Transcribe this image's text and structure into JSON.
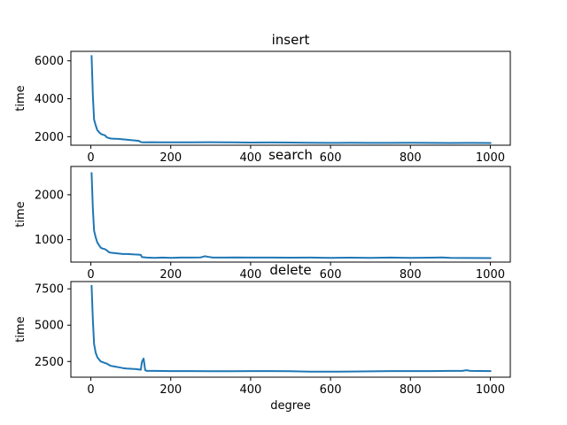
{
  "chart_data": [
    {
      "type": "line",
      "title": "insert",
      "xlabel": "",
      "ylabel": "time",
      "xlim": [
        -50,
        1050
      ],
      "ylim": [
        1550,
        6500
      ],
      "xticks": [
        0,
        200,
        400,
        600,
        800,
        1000
      ],
      "yticks": [
        2000,
        4000,
        6000
      ],
      "color": "#1f77b4",
      "points": [
        [
          2,
          6250
        ],
        [
          5,
          4200
        ],
        [
          8,
          2900
        ],
        [
          12,
          2600
        ],
        [
          16,
          2350
        ],
        [
          20,
          2250
        ],
        [
          25,
          2150
        ],
        [
          30,
          2100
        ],
        [
          35,
          2080
        ],
        [
          40,
          1960
        ],
        [
          50,
          1900
        ],
        [
          60,
          1890
        ],
        [
          70,
          1880
        ],
        [
          80,
          1860
        ],
        [
          90,
          1840
        ],
        [
          100,
          1820
        ],
        [
          110,
          1800
        ],
        [
          120,
          1780
        ],
        [
          125,
          1720
        ],
        [
          130,
          1700
        ],
        [
          150,
          1710
        ],
        [
          175,
          1700
        ],
        [
          200,
          1705
        ],
        [
          250,
          1700
        ],
        [
          300,
          1710
        ],
        [
          350,
          1700
        ],
        [
          400,
          1690
        ],
        [
          450,
          1695
        ],
        [
          500,
          1690
        ],
        [
          550,
          1680
        ],
        [
          600,
          1670
        ],
        [
          650,
          1675
        ],
        [
          700,
          1670
        ],
        [
          750,
          1670
        ],
        [
          800,
          1675
        ],
        [
          850,
          1670
        ],
        [
          900,
          1665
        ],
        [
          950,
          1670
        ],
        [
          1000,
          1665
        ]
      ]
    },
    {
      "type": "line",
      "title": "search",
      "xlabel": "",
      "ylabel": "time",
      "xlim": [
        -50,
        1050
      ],
      "ylim": [
        500,
        2630
      ],
      "xticks": [
        0,
        200,
        400,
        600,
        800,
        1000
      ],
      "yticks": [
        1000,
        2000
      ],
      "color": "#1f77b4",
      "points": [
        [
          2,
          2480
        ],
        [
          5,
          1700
        ],
        [
          8,
          1200
        ],
        [
          12,
          1050
        ],
        [
          16,
          940
        ],
        [
          20,
          880
        ],
        [
          25,
          820
        ],
        [
          30,
          800
        ],
        [
          35,
          790
        ],
        [
          40,
          760
        ],
        [
          45,
          720
        ],
        [
          50,
          710
        ],
        [
          60,
          700
        ],
        [
          70,
          690
        ],
        [
          80,
          680
        ],
        [
          90,
          680
        ],
        [
          100,
          675
        ],
        [
          110,
          670
        ],
        [
          120,
          665
        ],
        [
          125,
          660
        ],
        [
          128,
          610
        ],
        [
          140,
          600
        ],
        [
          160,
          595
        ],
        [
          180,
          600
        ],
        [
          200,
          595
        ],
        [
          225,
          600
        ],
        [
          250,
          600
        ],
        [
          275,
          605
        ],
        [
          285,
          630
        ],
        [
          295,
          615
        ],
        [
          305,
          600
        ],
        [
          330,
          600
        ],
        [
          360,
          605
        ],
        [
          400,
          600
        ],
        [
          450,
          600
        ],
        [
          500,
          598
        ],
        [
          550,
          600
        ],
        [
          600,
          595
        ],
        [
          650,
          598
        ],
        [
          700,
          595
        ],
        [
          750,
          600
        ],
        [
          800,
          595
        ],
        [
          850,
          598
        ],
        [
          880,
          605
        ],
        [
          900,
          595
        ],
        [
          950,
          590
        ],
        [
          1000,
          588
        ]
      ]
    },
    {
      "type": "line",
      "title": "delete",
      "xlabel": "degree",
      "ylabel": "time",
      "xlim": [
        -50,
        1050
      ],
      "ylim": [
        1420,
        8000
      ],
      "xticks": [
        0,
        200,
        400,
        600,
        800,
        1000
      ],
      "yticks": [
        2500,
        5000,
        7500
      ],
      "color": "#1f77b4",
      "points": [
        [
          2,
          7700
        ],
        [
          5,
          5400
        ],
        [
          8,
          3700
        ],
        [
          12,
          3100
        ],
        [
          16,
          2800
        ],
        [
          20,
          2650
        ],
        [
          25,
          2500
        ],
        [
          30,
          2450
        ],
        [
          35,
          2400
        ],
        [
          40,
          2350
        ],
        [
          50,
          2200
        ],
        [
          60,
          2150
        ],
        [
          70,
          2100
        ],
        [
          80,
          2050
        ],
        [
          90,
          2020
        ],
        [
          100,
          2000
        ],
        [
          110,
          1980
        ],
        [
          120,
          1950
        ],
        [
          125,
          1930
        ],
        [
          128,
          2500
        ],
        [
          132,
          2700
        ],
        [
          136,
          1900
        ],
        [
          140,
          1850
        ],
        [
          160,
          1850
        ],
        [
          200,
          1840
        ],
        [
          250,
          1840
        ],
        [
          300,
          1830
        ],
        [
          350,
          1830
        ],
        [
          400,
          1840
        ],
        [
          450,
          1840
        ],
        [
          500,
          1830
        ],
        [
          550,
          1800
        ],
        [
          600,
          1800
        ],
        [
          650,
          1810
        ],
        [
          700,
          1820
        ],
        [
          750,
          1840
        ],
        [
          800,
          1840
        ],
        [
          850,
          1840
        ],
        [
          900,
          1850
        ],
        [
          930,
          1850
        ],
        [
          940,
          1900
        ],
        [
          950,
          1850
        ],
        [
          1000,
          1840
        ]
      ]
    }
  ]
}
